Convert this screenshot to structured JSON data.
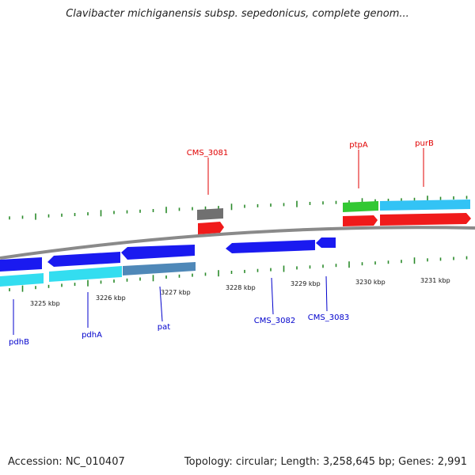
{
  "title": "Clavibacter michiganensis subsp. sepedonicus, complete genom...",
  "footer": {
    "accession": "Accession: NC_010407",
    "summary": "Topology: circular; Length: 3,258,645 bp; Genes: 2,991"
  },
  "colors": {
    "backbone": "#8a8a8a",
    "tick": "#2a8a2a",
    "blue_gene": "#1a1af0",
    "cyan_gene": "#33ddf0",
    "steel_gene": "#4f88b8",
    "light_blue_gene": "#33c3f5",
    "red_gene": "#f01a1a",
    "green_gene": "#33c833",
    "gray_gene": "#707070",
    "label_red": "#e00000",
    "label_blue": "#0000cc"
  },
  "scale_labels": [
    "3225 kbp",
    "3226 kbp",
    "3227 kbp",
    "3228 kbp",
    "3229 kbp",
    "3230 kbp",
    "3231 kbp"
  ],
  "genes_top": [
    {
      "name": "CMS_3081",
      "color": "label_red"
    },
    {
      "name": "ptpA",
      "color": "label_red"
    },
    {
      "name": "purB",
      "color": "label_red"
    }
  ],
  "genes_bottom": [
    {
      "name": "pdhB",
      "color": "label_blue"
    },
    {
      "name": "pdhA",
      "color": "label_blue"
    },
    {
      "name": "pat",
      "color": "label_blue"
    },
    {
      "name": "CMS_3082",
      "color": "label_blue"
    },
    {
      "name": "CMS_3083",
      "color": "label_blue"
    }
  ]
}
